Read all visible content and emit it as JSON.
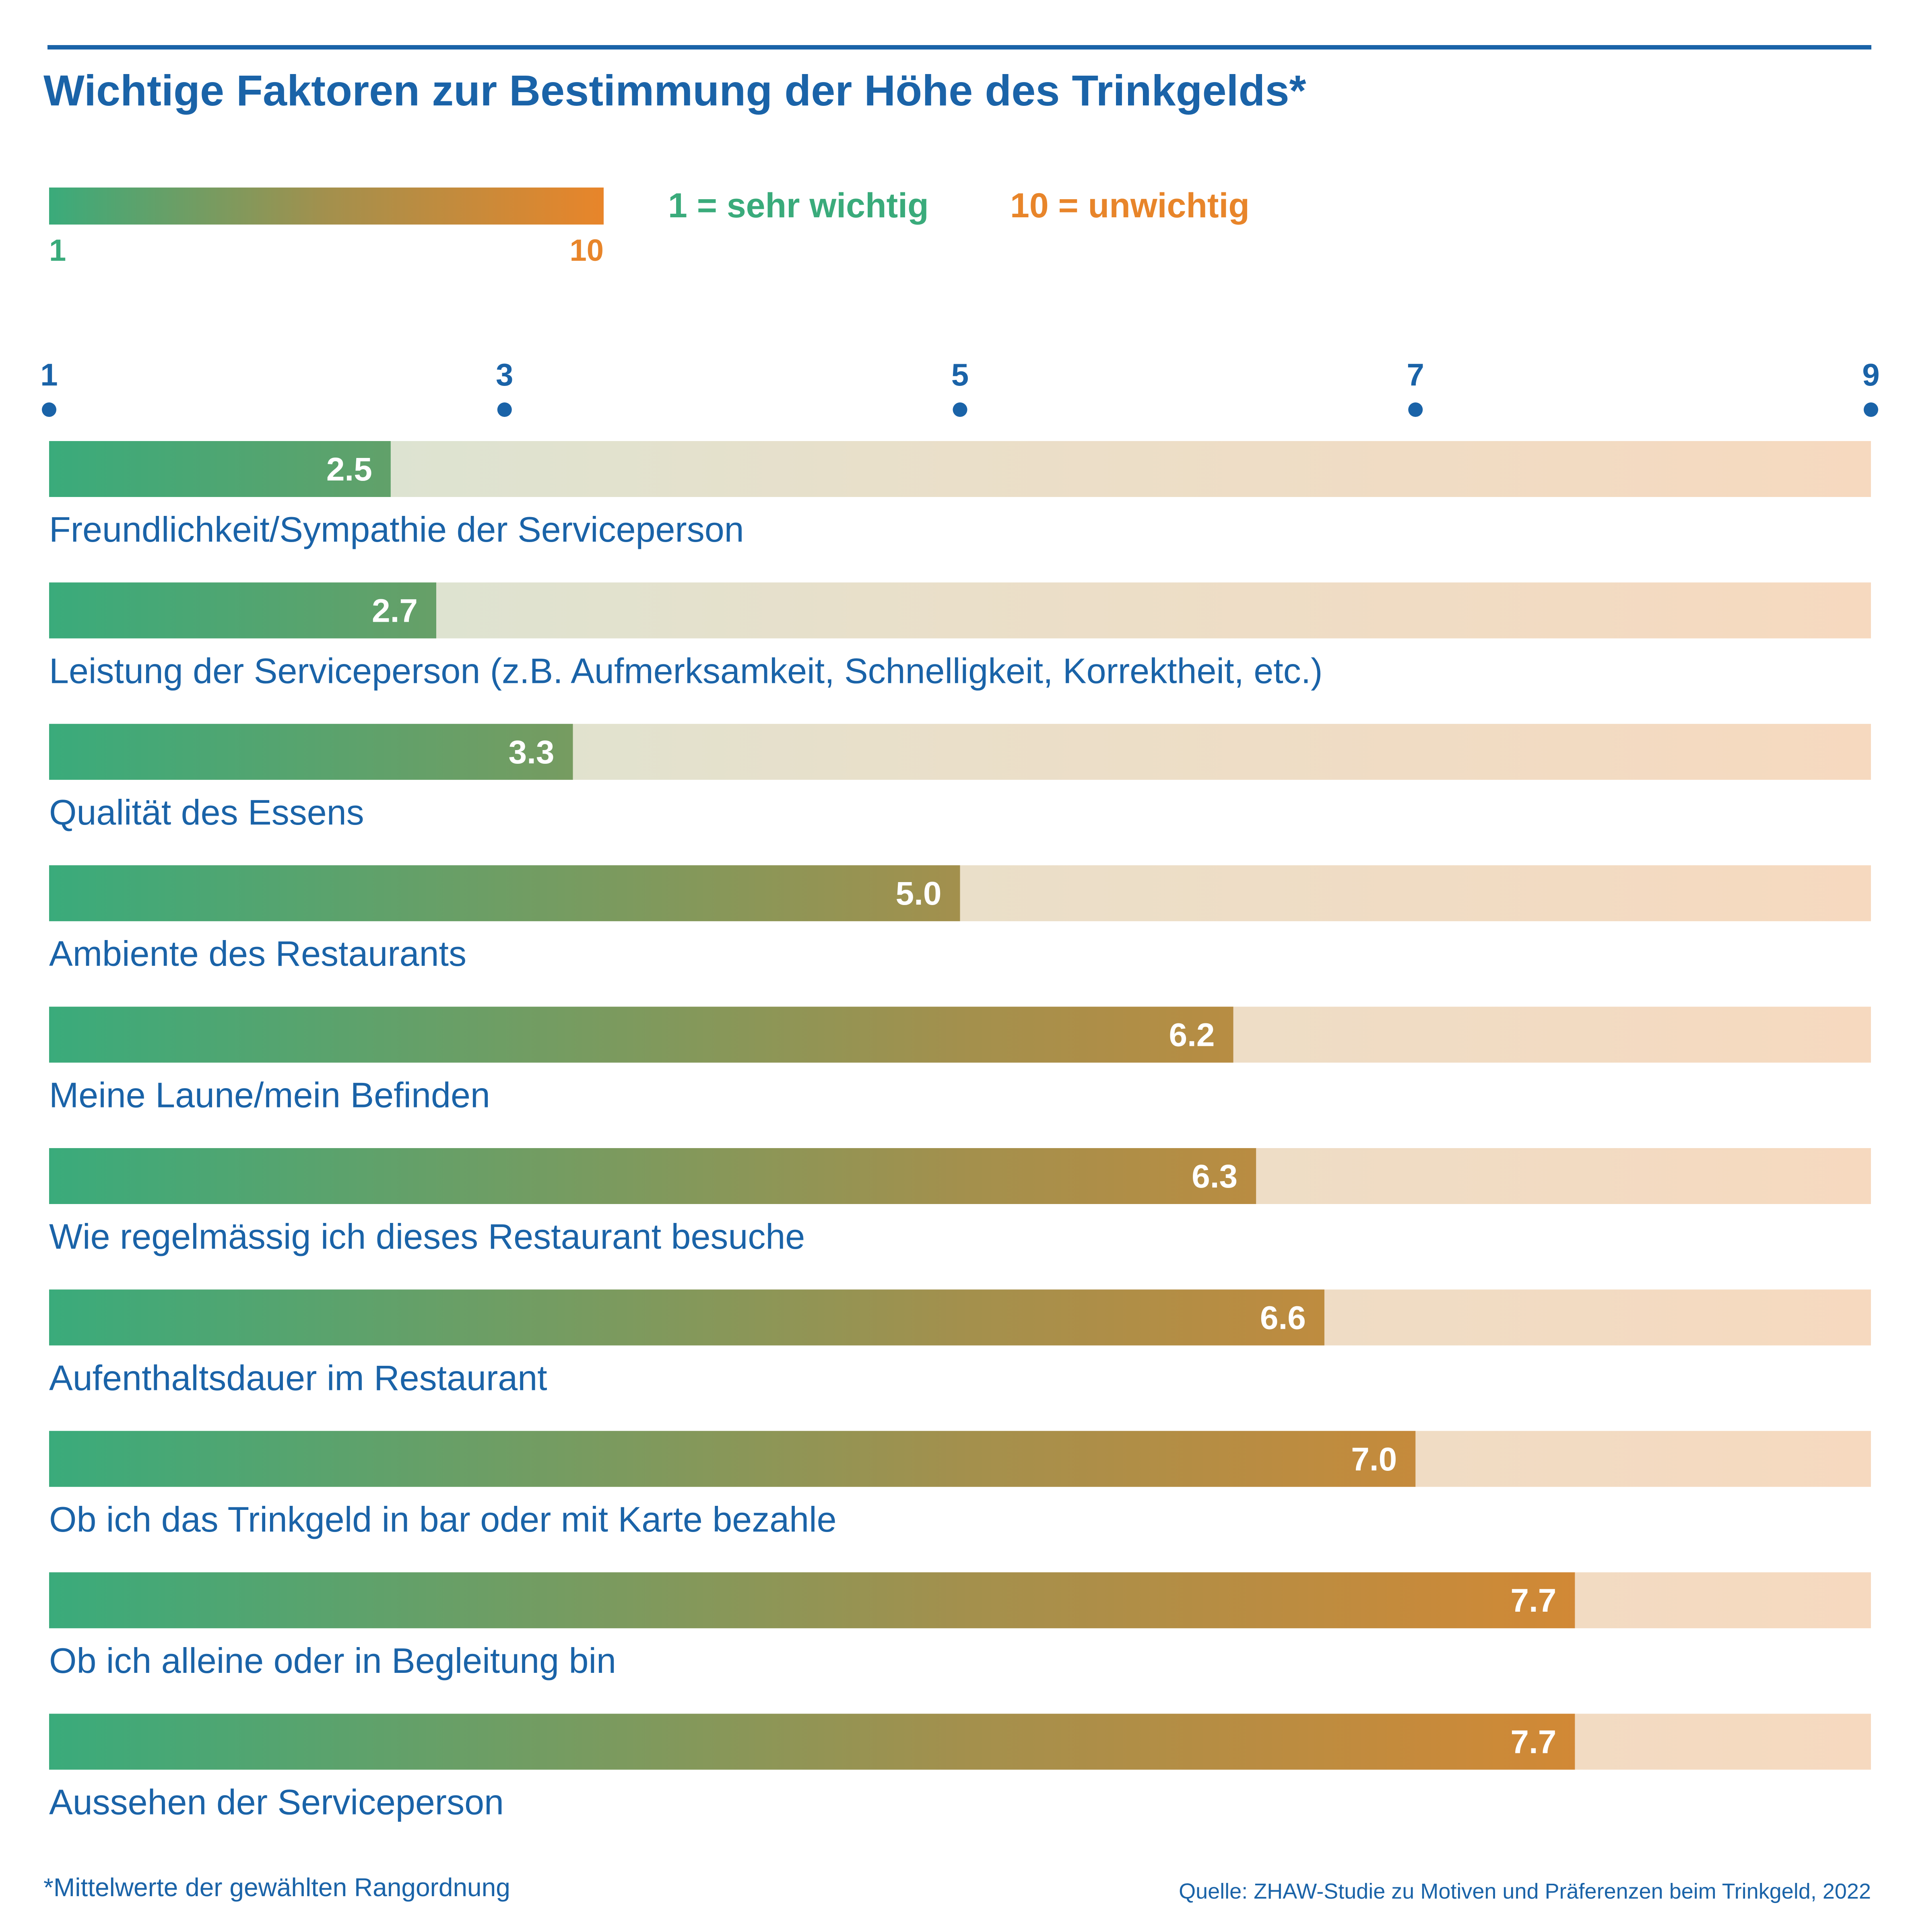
{
  "colors": {
    "blue": "#1a63a8",
    "green": "#3aab7b",
    "orange": "#e8852a",
    "track_start": "#d5e6d6",
    "track_end": "#f6d9bf",
    "value_text": "#ffffff"
  },
  "chart_data": {
    "type": "bar",
    "orientation": "horizontal",
    "title": "Wichtige Faktoren zur Bestimmung der Höhe des Trinkgelds*",
    "legend": {
      "scale_min_label": "1",
      "scale_max_label": "10",
      "low_text": "1 = sehr wichtig",
      "high_text": "10 = unwichtig",
      "placement": "top-left"
    },
    "axis": {
      "min": 1,
      "max": 9,
      "ticks": [
        1,
        3,
        5,
        7,
        9
      ],
      "tick_labels": [
        "1",
        "3",
        "5",
        "7",
        "9"
      ],
      "position": "top"
    },
    "categories": [
      "Freundlichkeit/Sympathie der Serviceperson",
      "Leistung der Serviceperson (z.B. Aufmerksamkeit, Schnelligkeit, Korrektheit, etc.)",
      "Qualität des Essens",
      "Ambiente des Restaurants",
      "Meine Laune/mein Befinden",
      "Wie regelmässig ich dieses Restaurant besuche",
      "Aufenthaltsdauer im Restaurant",
      "Ob ich das Trinkgeld in bar oder mit Karte bezahle",
      "Ob ich alleine oder in Begleitung bin",
      "Aussehen der Serviceperson"
    ],
    "values": [
      2.5,
      2.7,
      3.3,
      5.0,
      6.2,
      6.3,
      6.6,
      7.0,
      7.7,
      7.7
    ],
    "value_labels": [
      "2.5",
      "2.7",
      "3.3",
      "5.0",
      "6.2",
      "6.3",
      "6.6",
      "7.0",
      "7.7",
      "7.7"
    ],
    "grid": false
  },
  "footnote": "*Mittelwerte der gewählten Rangordnung",
  "source": "Quelle: ZHAW-Studie zu Motiven und Präferenzen beim Trinkgeld, 2022"
}
